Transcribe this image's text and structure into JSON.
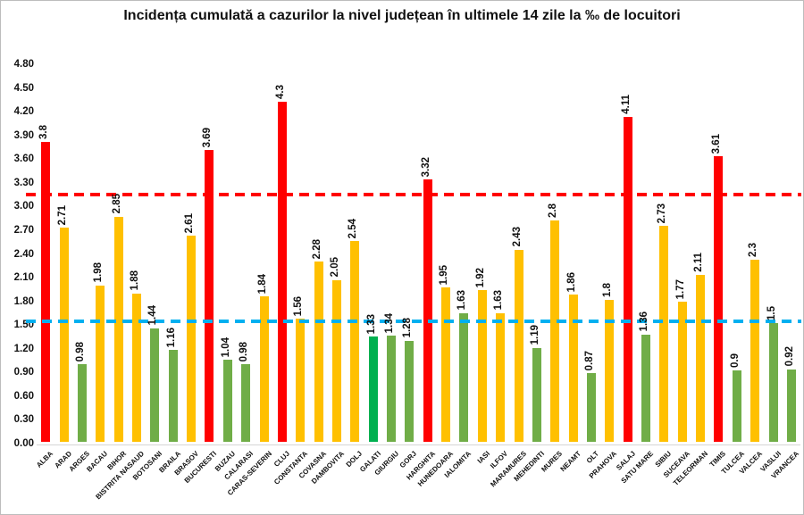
{
  "title": "Incidența cumulată a cazurilor la nivel județean în ultimele 14 zile la ‰ de locuitori",
  "colors": {
    "red": "#FF0000",
    "yellow": "#FFC000",
    "green": "#70AD47",
    "bright_green": "#00B050",
    "red_line": "#FF0000",
    "blue_line": "#00B0F0",
    "axis_text": "#111111",
    "axis_line": "#d6d6d6"
  },
  "chart_data": {
    "type": "bar",
    "title": "Incidența cumulată a cazurilor la nivel județean în ultimele 14 zile la ‰ de locuitori",
    "xlabel": "",
    "ylabel": "",
    "ylim": [
      0,
      4.8
    ],
    "ytick_step": 0.3,
    "yticks": [
      "4.80",
      "4.50",
      "4.20",
      "3.90",
      "3.60",
      "3.30",
      "3.00",
      "2.70",
      "2.40",
      "2.10",
      "1.80",
      "1.50",
      "1.20",
      "0.90",
      "0.60",
      "0.30",
      "0.00"
    ],
    "grid": false,
    "legend": "none",
    "reference_lines": [
      {
        "name": "red-threshold",
        "value": 3.15,
        "color_key": "red_line",
        "style": "dashed"
      },
      {
        "name": "blue-threshold",
        "value": 1.55,
        "color_key": "blue_line",
        "style": "dashed"
      }
    ],
    "categories": [
      "ALBA",
      "ARAD",
      "ARGES",
      "BACAU",
      "BIHOR",
      "BISTRITA NASAUD",
      "BOTOSANI",
      "BRAILA",
      "BRASOV",
      "BUCURESTI",
      "BUZAU",
      "CALARASI",
      "CARAS-SEVERIN",
      "CLUJ",
      "CONSTANTA",
      "COVASNA",
      "DAMBOVITA",
      "DOLJ",
      "GALATI",
      "GIURGIU",
      "GORJ",
      "HARGHITA",
      "HUNEDOARA",
      "IALOMITA",
      "IASI",
      "ILFOV",
      "MARAMURES",
      "MEHEDINTI",
      "MURES",
      "NEAMT",
      "OLT",
      "PRAHOVA",
      "SALAJ",
      "SATU MARE",
      "SIBIU",
      "SUCEAVA",
      "TELEORMAN",
      "TIMIS",
      "TULCEA",
      "VALCEA",
      "VASLUI",
      "VRANCEA"
    ],
    "values": [
      3.8,
      2.71,
      0.98,
      1.98,
      2.85,
      1.88,
      1.44,
      1.16,
      2.61,
      3.69,
      1.04,
      0.98,
      1.84,
      4.3,
      1.56,
      2.28,
      2.05,
      2.54,
      1.33,
      1.34,
      1.28,
      3.32,
      1.95,
      1.63,
      1.92,
      1.63,
      2.43,
      1.19,
      2.8,
      1.86,
      0.87,
      1.8,
      4.11,
      1.36,
      2.73,
      1.77,
      2.11,
      3.61,
      0.9,
      2.3,
      1.5,
      0.92
    ],
    "value_labels": [
      "3.8",
      "2.71",
      "0.98",
      "1.98",
      "2.85",
      "1.88",
      "1.44",
      "1.16",
      "2.61",
      "3.69",
      "1.04",
      "0.98",
      "1.84",
      "4.3",
      "1.56",
      "2.28",
      "2.05",
      "2.54",
      "1.33",
      "1.34",
      "1.28",
      "3.32",
      "1.95",
      "1.63",
      "1.92",
      "1.63",
      "2.43",
      "1.19",
      "2.8",
      "1.86",
      "0.87",
      "1.8",
      "4.11",
      "1.36",
      "2.73",
      "1.77",
      "2.11",
      "3.61",
      "0.9",
      "2.3",
      "1.5",
      "0.92"
    ],
    "bar_color_keys": [
      "red",
      "yellow",
      "green",
      "yellow",
      "yellow",
      "yellow",
      "green",
      "green",
      "yellow",
      "red",
      "green",
      "green",
      "yellow",
      "red",
      "yellow",
      "yellow",
      "yellow",
      "yellow",
      "bright_green",
      "green",
      "green",
      "red",
      "yellow",
      "green",
      "yellow",
      "yellow",
      "yellow",
      "green",
      "yellow",
      "yellow",
      "green",
      "yellow",
      "red",
      "green",
      "yellow",
      "yellow",
      "yellow",
      "red",
      "green",
      "yellow",
      "green",
      "green"
    ]
  }
}
